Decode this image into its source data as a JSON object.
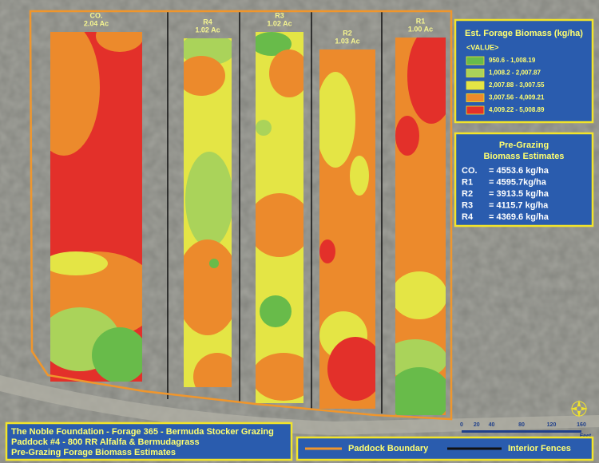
{
  "strips": [
    {
      "name": "CO.",
      "area": "2.04 Ac"
    },
    {
      "name": "R4",
      "area": "1.02 Ac"
    },
    {
      "name": "R3",
      "area": "1.02 Ac"
    },
    {
      "name": "R2",
      "area": "1.03 Ac"
    },
    {
      "name": "R1",
      "area": "1.00 Ac"
    }
  ],
  "legend": {
    "title": "Est. Forage Biomass (kg/ha)",
    "field": "<VALUE>",
    "classes": [
      {
        "label": "950.6 - 1,008.19",
        "color": "#68bb4a"
      },
      {
        "label": "1,008.2 - 2,007.87",
        "color": "#aad35a"
      },
      {
        "label": "2,007.88 - 3,007.55",
        "color": "#e4e545"
      },
      {
        "label": "3,007.56 - 4,009.21",
        "color": "#ec8a2c"
      },
      {
        "label": "4,009.22 - 5,008.89",
        "color": "#e3302a"
      }
    ]
  },
  "estimates": {
    "title_lines": [
      "Pre-Grazing",
      "Biomass Estimates"
    ],
    "rows": [
      {
        "name": "CO.",
        "value": "= 4553.6 kg/ha"
      },
      {
        "name": "R1",
        "value": "= 4595.7kg/ha"
      },
      {
        "name": "R2",
        "value": "= 3913.5 kg/ha"
      },
      {
        "name": "R3",
        "value": "= 4115.7 kg/ha"
      },
      {
        "name": "R4",
        "value": "= 4369.6 kg/ha"
      }
    ]
  },
  "footer": {
    "lines": [
      "The Noble Foundation - Forage 365 - Bermuda Stocker Grazing",
      "Paddock #4 - 800 RR Alfalfa & Bermudagrass",
      "Pre-Grazing Forage Biomass Estimates"
    ]
  },
  "map_legend": {
    "boundary": "Paddock Boundary",
    "fences": "Interior Fences"
  },
  "scale": {
    "ticks": [
      "0",
      "20",
      "40",
      "80",
      "120",
      "160"
    ],
    "unit": "Feet"
  }
}
